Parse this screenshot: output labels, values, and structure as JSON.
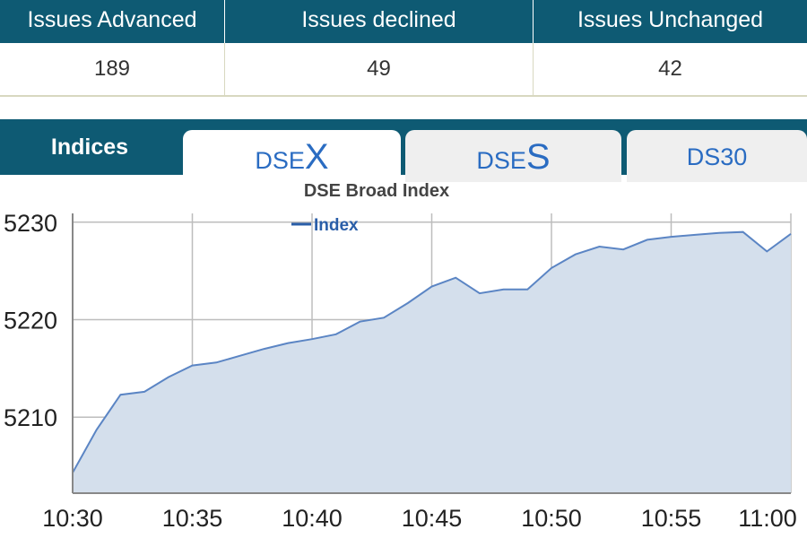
{
  "summary": {
    "columns": [
      {
        "label": "Issues Advanced",
        "value": "189"
      },
      {
        "label": "Issues declined",
        "value": "49"
      },
      {
        "label": "Issues Unchanged",
        "value": "42"
      }
    ]
  },
  "tabs": {
    "indices_label": "Indices",
    "items": [
      {
        "prefix": "DSE",
        "letter": "X",
        "active": true
      },
      {
        "prefix": "DSE",
        "letter": "S",
        "active": false
      },
      {
        "prefix": "DS30",
        "letter": "",
        "active": false
      }
    ]
  },
  "colors": {
    "header_bg": "#0e5a73",
    "line": "#5b85c4",
    "fill": "#d4dfec",
    "tab_text": "#2a6cc2"
  },
  "chart_data": {
    "type": "area",
    "title": "DSE Broad Index",
    "legend": "Index",
    "legend_position": "top",
    "grid": true,
    "xlabel": "",
    "ylabel": "",
    "x_ticks": [
      "10:30",
      "10:35",
      "10:40",
      "10:45",
      "10:50",
      "10:55",
      "11:00"
    ],
    "y_ticks": [
      5210,
      5220,
      5230
    ],
    "ylim": [
      5202.2,
      5230.9
    ],
    "xlim": [
      "10:30",
      "11:00"
    ],
    "series": [
      {
        "name": "Index",
        "x": [
          "10:30",
          "10:31",
          "10:32",
          "10:33",
          "10:34",
          "10:35",
          "10:36",
          "10:37",
          "10:38",
          "10:39",
          "10:40",
          "10:41",
          "10:42",
          "10:43",
          "10:44",
          "10:45",
          "10:46",
          "10:47",
          "10:48",
          "10:49",
          "10:50",
          "10:51",
          "10:52",
          "10:53",
          "10:54",
          "10:55",
          "10:56",
          "10:57",
          "10:58",
          "10:59",
          "11:00"
        ],
        "values": [
          5204.3,
          5208.7,
          5212.3,
          5212.6,
          5214.1,
          5215.3,
          5215.6,
          5216.3,
          5217.0,
          5217.6,
          5218.0,
          5218.5,
          5219.8,
          5220.2,
          5221.7,
          5223.4,
          5224.3,
          5222.7,
          5223.1,
          5223.1,
          5225.3,
          5226.7,
          5227.5,
          5227.2,
          5228.2,
          5228.5,
          5228.7,
          5228.9,
          5229.0,
          5227.0,
          5228.8
        ]
      }
    ]
  }
}
